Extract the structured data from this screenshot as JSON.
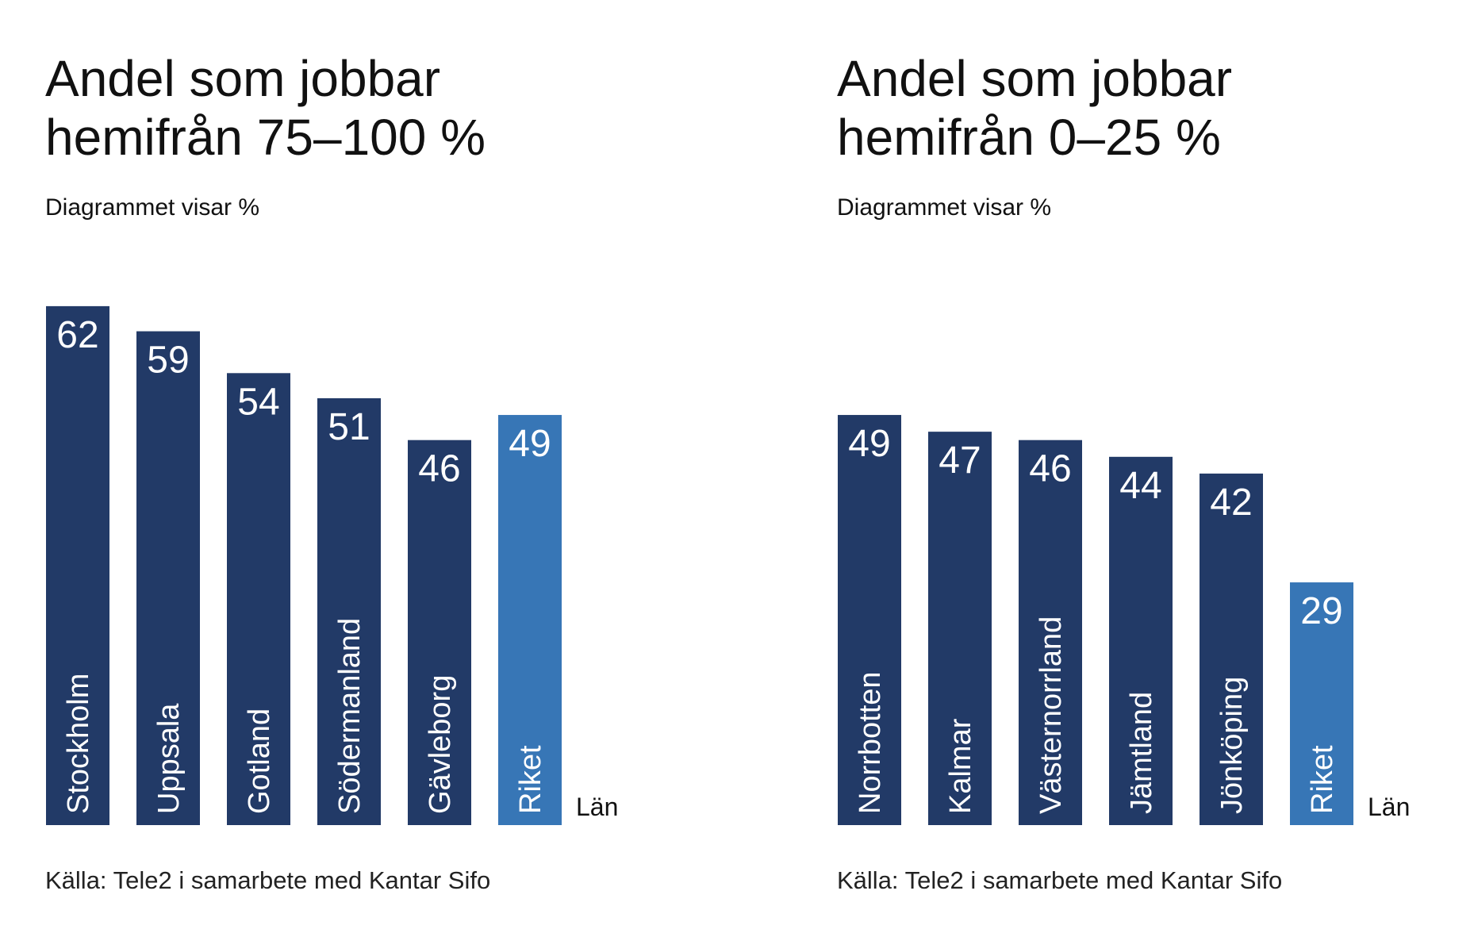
{
  "colors": {
    "bar": "#223a67",
    "highlight": "#3776b6",
    "text": "#111111"
  },
  "chart_data": [
    {
      "type": "bar",
      "title": "Andel som jobbar hemifrån 75–100 %",
      "subtitle": "Diagrammet visar %",
      "xlabel": "Län",
      "ylabel": "",
      "source": "Källa: Tele2 i samarbete med Kantar Sifo",
      "categories": [
        "Stockholm",
        "Uppsala",
        "Gotland",
        "Södermanland",
        "Gävleborg",
        "Riket"
      ],
      "values": [
        62,
        59,
        54,
        51,
        46,
        49
      ],
      "highlight": "Riket",
      "grid": false,
      "ylim": [
        0,
        62
      ]
    },
    {
      "type": "bar",
      "title": "Andel som jobbar hemifrån 0–25 %",
      "subtitle": "Diagrammet visar %",
      "xlabel": "Län",
      "ylabel": "",
      "source": "Källa: Tele2 i samarbete med Kantar Sifo",
      "categories": [
        "Norrbotten",
        "Kalmar",
        "Västernorrland",
        "Jämtland",
        "Jönköping",
        "Riket"
      ],
      "values": [
        49,
        47,
        46,
        44,
        42,
        29
      ],
      "highlight": "Riket",
      "grid": false,
      "ylim": [
        0,
        62
      ]
    }
  ]
}
